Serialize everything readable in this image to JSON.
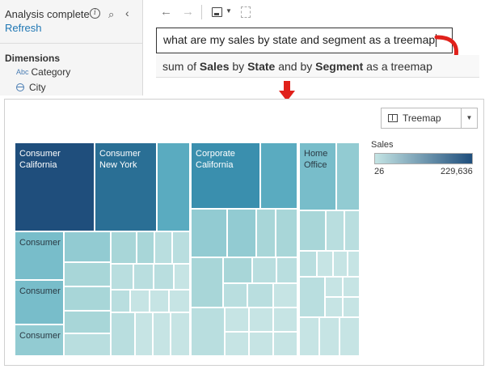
{
  "left_pane": {
    "status": "Analysis complete",
    "refresh": "Refresh",
    "dimensions_title": "Dimensions",
    "fields": [
      {
        "type": "Abc",
        "label": "Category"
      },
      {
        "type": "globe",
        "label": "City"
      }
    ]
  },
  "query": {
    "text": "what are my sales by state and segment as a treemap",
    "interpretation": {
      "prefix": "sum of ",
      "measure": "Sales",
      "by1": " by ",
      "dim1": "State",
      "by2": " and by ",
      "dim2": "Segment",
      "suffix": " as a treemap"
    }
  },
  "viz": {
    "type_select": "Treemap",
    "legend": {
      "title": "Sales",
      "min": "26",
      "max": "229,636",
      "color_min": "#c4e4e4",
      "color_max": "#1f4e7c"
    }
  },
  "colors": {
    "accent_link": "#1f77b4",
    "arrow_red": "#e0211b"
  },
  "chart_data": {
    "type": "treemap",
    "title": "",
    "measure": "Sales",
    "dimensions": [
      "Segment",
      "State"
    ],
    "labeled_tiles": [
      {
        "segment": "Consumer",
        "state": "California",
        "label": "Consumer\nCalifornia"
      },
      {
        "segment": "Consumer",
        "state": "New York",
        "label": "Consumer\nNew York"
      },
      {
        "segment": "Corporate",
        "state": "California",
        "label": "Corporate\nCalifornia"
      },
      {
        "segment": "Home Office",
        "state": "",
        "label": "Home\nOffice"
      },
      {
        "segment": "Consumer",
        "state": "",
        "label": "Consumer"
      },
      {
        "segment": "Consumer",
        "state": "",
        "label": "Consumer"
      },
      {
        "segment": "Consumer",
        "state": "",
        "label": "Consumer"
      }
    ],
    "color_range": [
      26,
      229636
    ]
  }
}
